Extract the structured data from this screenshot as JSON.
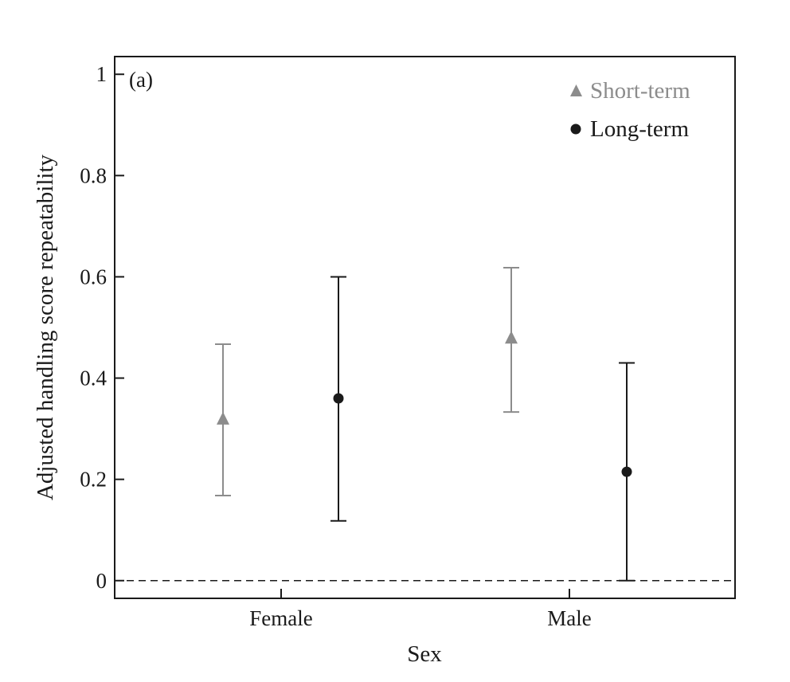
{
  "chart_data": {
    "type": "scatter",
    "panel_label": "(a)",
    "xlabel": "Sex",
    "ylabel": "Adjusted handling score repeatability",
    "categories": [
      "Female",
      "Male"
    ],
    "ylim": [
      -0.035,
      1.035
    ],
    "yticks": [
      {
        "value": 0,
        "label": "0"
      },
      {
        "value": 0.2,
        "label": "0.2"
      },
      {
        "value": 0.4,
        "label": "0.4"
      },
      {
        "value": 0.6,
        "label": "0.6"
      },
      {
        "value": 0.8,
        "label": "0.8"
      },
      {
        "value": 1,
        "label": "1"
      }
    ],
    "reference_line": {
      "value": 0,
      "style": "dashed"
    },
    "legend_position": "top-right",
    "series": [
      {
        "name": "Short-term",
        "marker": "triangle",
        "color": "#8c8c8c",
        "values": [
          0.32,
          0.48
        ],
        "lower": [
          0.168,
          0.333
        ],
        "upper": [
          0.467,
          0.618
        ]
      },
      {
        "name": "Long-term",
        "marker": "circle",
        "color": "#1a1a1a",
        "values": [
          0.36,
          0.215
        ],
        "lower": [
          0.118,
          0.0
        ],
        "upper": [
          0.6,
          0.43
        ]
      }
    ]
  }
}
